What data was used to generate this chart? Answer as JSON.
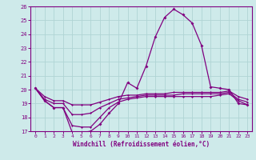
{
  "hours": [
    0,
    1,
    2,
    3,
    4,
    5,
    6,
    7,
    8,
    9,
    10,
    11,
    12,
    13,
    14,
    15,
    16,
    17,
    18,
    19,
    20,
    21,
    22,
    23
  ],
  "line1": [
    20.1,
    19.2,
    18.7,
    18.7,
    16.9,
    16.9,
    17.0,
    17.5,
    18.3,
    19.0,
    20.5,
    20.1,
    21.7,
    23.8,
    25.2,
    25.8,
    25.4,
    24.8,
    23.2,
    20.2,
    20.1,
    20.0,
    19.0,
    18.9
  ],
  "line2": [
    20.1,
    19.2,
    18.7,
    18.7,
    17.4,
    17.3,
    17.3,
    18.0,
    18.7,
    19.1,
    19.3,
    19.4,
    19.5,
    19.5,
    19.5,
    19.5,
    19.5,
    19.5,
    19.5,
    19.5,
    19.6,
    19.7,
    19.2,
    18.9
  ],
  "line3": [
    20.1,
    19.3,
    19.0,
    19.0,
    18.2,
    18.2,
    18.3,
    18.7,
    19.0,
    19.3,
    19.4,
    19.5,
    19.6,
    19.6,
    19.6,
    19.6,
    19.7,
    19.7,
    19.7,
    19.7,
    19.7,
    19.8,
    19.3,
    19.1
  ],
  "line4": [
    20.1,
    19.5,
    19.2,
    19.2,
    18.9,
    18.9,
    18.9,
    19.1,
    19.3,
    19.5,
    19.6,
    19.6,
    19.7,
    19.7,
    19.7,
    19.8,
    19.8,
    19.8,
    19.8,
    19.8,
    19.8,
    19.9,
    19.5,
    19.3
  ],
  "color": "#800080",
  "bgcolor": "#ceeaea",
  "grid_color": "#afd4d4",
  "xlabel": "Windchill (Refroidissement éolien,°C)",
  "ylim": [
    17,
    26
  ],
  "xlim": [
    -0.5,
    23.5
  ],
  "yticks": [
    17,
    18,
    19,
    20,
    21,
    22,
    23,
    24,
    25,
    26
  ],
  "xticks": [
    0,
    1,
    2,
    3,
    4,
    5,
    6,
    7,
    8,
    9,
    10,
    11,
    12,
    13,
    14,
    15,
    16,
    17,
    18,
    19,
    20,
    21,
    22,
    23
  ]
}
